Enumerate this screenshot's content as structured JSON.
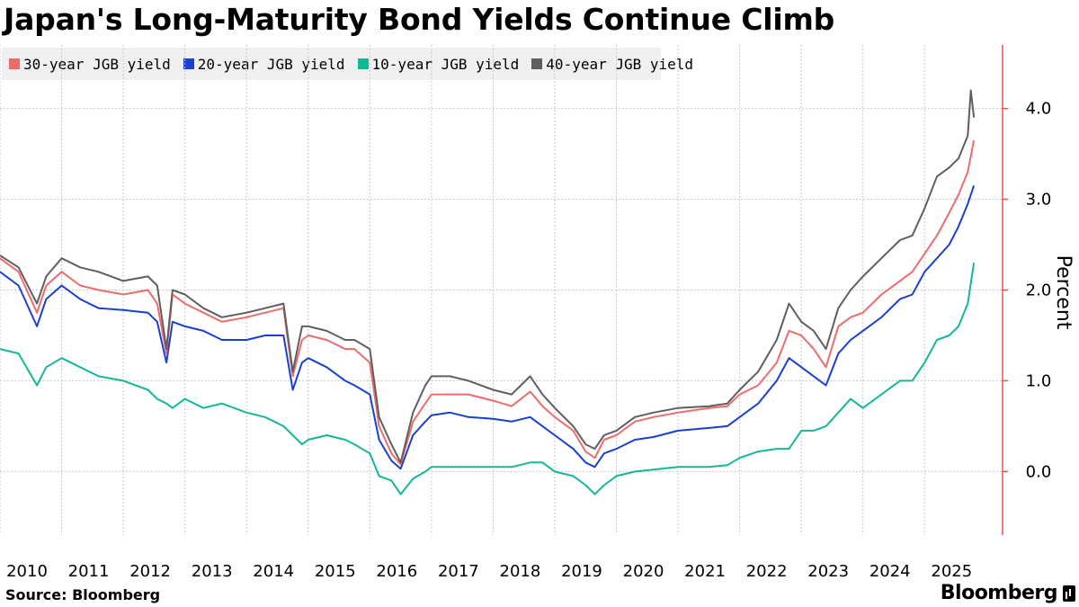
{
  "title": "Japan's Long-Maturity Bond Yields Continue Climb",
  "source": "Source: Bloomberg",
  "brand": "Bloomberg",
  "chart_data": {
    "type": "line",
    "title": "Japan's Long-Maturity Bond Yields Continue Climb",
    "xlabel": "",
    "ylabel": "Percent",
    "xlim": [
      2010,
      2025.9
    ],
    "ylim": [
      -0.7,
      4.7
    ],
    "y_ticks": [
      0.0,
      1.0,
      2.0,
      3.0,
      4.0
    ],
    "y_tick_labels": [
      "0.0",
      "1.0",
      "2.0",
      "3.0",
      "4.0"
    ],
    "x_ticks": [
      2010,
      2011,
      2012,
      2013,
      2014,
      2015,
      2016,
      2017,
      2018,
      2019,
      2020,
      2021,
      2022,
      2023,
      2024,
      2025
    ],
    "x_tick_labels": [
      "2010",
      "2011",
      "2012",
      "2013",
      "2014",
      "2015",
      "2016",
      "2017",
      "2018",
      "2019",
      "2020",
      "2021",
      "2022",
      "2023",
      "2024",
      "2025"
    ],
    "grid": true,
    "axis_color": "#e8504d",
    "legend_position": "top-left",
    "series": [
      {
        "name": "30-year JGB yield",
        "color": "#f06b6b",
        "points": [
          [
            2010.0,
            2.35
          ],
          [
            2010.3,
            2.2
          ],
          [
            2010.6,
            1.75
          ],
          [
            2010.75,
            2.05
          ],
          [
            2011.0,
            2.2
          ],
          [
            2011.3,
            2.05
          ],
          [
            2011.6,
            2.0
          ],
          [
            2012.0,
            1.95
          ],
          [
            2012.4,
            2.0
          ],
          [
            2012.55,
            1.85
          ],
          [
            2012.7,
            1.3
          ],
          [
            2012.8,
            1.95
          ],
          [
            2013.0,
            1.85
          ],
          [
            2013.3,
            1.75
          ],
          [
            2013.6,
            1.65
          ],
          [
            2014.0,
            1.7
          ],
          [
            2014.3,
            1.75
          ],
          [
            2014.6,
            1.8
          ],
          [
            2014.75,
            1.05
          ],
          [
            2014.9,
            1.45
          ],
          [
            2015.0,
            1.5
          ],
          [
            2015.3,
            1.45
          ],
          [
            2015.6,
            1.35
          ],
          [
            2015.75,
            1.35
          ],
          [
            2016.0,
            1.2
          ],
          [
            2016.15,
            0.5
          ],
          [
            2016.35,
            0.2
          ],
          [
            2016.5,
            0.08
          ],
          [
            2016.7,
            0.55
          ],
          [
            2016.9,
            0.75
          ],
          [
            2017.0,
            0.85
          ],
          [
            2017.3,
            0.85
          ],
          [
            2017.6,
            0.85
          ],
          [
            2018.0,
            0.78
          ],
          [
            2018.3,
            0.72
          ],
          [
            2018.6,
            0.88
          ],
          [
            2018.8,
            0.72
          ],
          [
            2019.0,
            0.6
          ],
          [
            2019.3,
            0.45
          ],
          [
            2019.5,
            0.22
          ],
          [
            2019.65,
            0.15
          ],
          [
            2019.8,
            0.35
          ],
          [
            2020.0,
            0.4
          ],
          [
            2020.3,
            0.55
          ],
          [
            2020.6,
            0.6
          ],
          [
            2021.0,
            0.65
          ],
          [
            2021.5,
            0.7
          ],
          [
            2021.8,
            0.72
          ],
          [
            2022.0,
            0.85
          ],
          [
            2022.3,
            0.95
          ],
          [
            2022.6,
            1.2
          ],
          [
            2022.8,
            1.55
          ],
          [
            2023.0,
            1.5
          ],
          [
            2023.2,
            1.35
          ],
          [
            2023.4,
            1.15
          ],
          [
            2023.6,
            1.6
          ],
          [
            2023.8,
            1.7
          ],
          [
            2024.0,
            1.75
          ],
          [
            2024.3,
            1.95
          ],
          [
            2024.6,
            2.1
          ],
          [
            2024.8,
            2.2
          ],
          [
            2025.0,
            2.4
          ],
          [
            2025.2,
            2.6
          ],
          [
            2025.4,
            2.85
          ],
          [
            2025.55,
            3.05
          ],
          [
            2025.7,
            3.3
          ],
          [
            2025.8,
            3.65
          ]
        ]
      },
      {
        "name": "20-year JGB yield",
        "color": "#1a3fd1",
        "points": [
          [
            2010.0,
            2.2
          ],
          [
            2010.3,
            2.05
          ],
          [
            2010.6,
            1.6
          ],
          [
            2010.75,
            1.9
          ],
          [
            2011.0,
            2.05
          ],
          [
            2011.3,
            1.9
          ],
          [
            2011.6,
            1.8
          ],
          [
            2012.0,
            1.78
          ],
          [
            2012.4,
            1.75
          ],
          [
            2012.55,
            1.65
          ],
          [
            2012.7,
            1.2
          ],
          [
            2012.8,
            1.65
          ],
          [
            2013.0,
            1.6
          ],
          [
            2013.3,
            1.55
          ],
          [
            2013.6,
            1.45
          ],
          [
            2014.0,
            1.45
          ],
          [
            2014.3,
            1.5
          ],
          [
            2014.6,
            1.5
          ],
          [
            2014.75,
            0.9
          ],
          [
            2014.9,
            1.2
          ],
          [
            2015.0,
            1.25
          ],
          [
            2015.3,
            1.15
          ],
          [
            2015.6,
            1.0
          ],
          [
            2015.75,
            0.95
          ],
          [
            2016.0,
            0.85
          ],
          [
            2016.15,
            0.35
          ],
          [
            2016.35,
            0.12
          ],
          [
            2016.5,
            0.03
          ],
          [
            2016.7,
            0.4
          ],
          [
            2016.9,
            0.55
          ],
          [
            2017.0,
            0.62
          ],
          [
            2017.3,
            0.65
          ],
          [
            2017.6,
            0.6
          ],
          [
            2018.0,
            0.58
          ],
          [
            2018.3,
            0.55
          ],
          [
            2018.6,
            0.6
          ],
          [
            2018.8,
            0.5
          ],
          [
            2019.0,
            0.4
          ],
          [
            2019.3,
            0.25
          ],
          [
            2019.5,
            0.1
          ],
          [
            2019.65,
            0.05
          ],
          [
            2019.8,
            0.2
          ],
          [
            2020.0,
            0.25
          ],
          [
            2020.3,
            0.35
          ],
          [
            2020.6,
            0.38
          ],
          [
            2021.0,
            0.45
          ],
          [
            2021.5,
            0.48
          ],
          [
            2021.8,
            0.5
          ],
          [
            2022.0,
            0.6
          ],
          [
            2022.3,
            0.75
          ],
          [
            2022.6,
            1.0
          ],
          [
            2022.8,
            1.25
          ],
          [
            2023.0,
            1.15
          ],
          [
            2023.2,
            1.05
          ],
          [
            2023.4,
            0.95
          ],
          [
            2023.6,
            1.3
          ],
          [
            2023.8,
            1.45
          ],
          [
            2024.0,
            1.55
          ],
          [
            2024.3,
            1.7
          ],
          [
            2024.6,
            1.9
          ],
          [
            2024.8,
            1.95
          ],
          [
            2025.0,
            2.2
          ],
          [
            2025.2,
            2.35
          ],
          [
            2025.4,
            2.5
          ],
          [
            2025.55,
            2.7
          ],
          [
            2025.7,
            2.95
          ],
          [
            2025.8,
            3.15
          ]
        ]
      },
      {
        "name": "10-year JGB yield",
        "color": "#14b896",
        "points": [
          [
            2010.0,
            1.35
          ],
          [
            2010.3,
            1.3
          ],
          [
            2010.6,
            0.95
          ],
          [
            2010.75,
            1.15
          ],
          [
            2011.0,
            1.25
          ],
          [
            2011.3,
            1.15
          ],
          [
            2011.6,
            1.05
          ],
          [
            2012.0,
            1.0
          ],
          [
            2012.4,
            0.9
          ],
          [
            2012.55,
            0.8
          ],
          [
            2012.7,
            0.75
          ],
          [
            2012.8,
            0.7
          ],
          [
            2013.0,
            0.8
          ],
          [
            2013.3,
            0.7
          ],
          [
            2013.6,
            0.75
          ],
          [
            2014.0,
            0.65
          ],
          [
            2014.3,
            0.6
          ],
          [
            2014.6,
            0.5
          ],
          [
            2014.75,
            0.4
          ],
          [
            2014.9,
            0.3
          ],
          [
            2015.0,
            0.35
          ],
          [
            2015.3,
            0.4
          ],
          [
            2015.6,
            0.35
          ],
          [
            2015.75,
            0.3
          ],
          [
            2016.0,
            0.2
          ],
          [
            2016.15,
            -0.05
          ],
          [
            2016.35,
            -0.1
          ],
          [
            2016.5,
            -0.25
          ],
          [
            2016.7,
            -0.08
          ],
          [
            2016.9,
            0.0
          ],
          [
            2017.0,
            0.05
          ],
          [
            2017.3,
            0.05
          ],
          [
            2017.6,
            0.05
          ],
          [
            2018.0,
            0.05
          ],
          [
            2018.3,
            0.05
          ],
          [
            2018.6,
            0.1
          ],
          [
            2018.8,
            0.1
          ],
          [
            2019.0,
            0.0
          ],
          [
            2019.3,
            -0.05
          ],
          [
            2019.5,
            -0.15
          ],
          [
            2019.65,
            -0.25
          ],
          [
            2019.8,
            -0.15
          ],
          [
            2020.0,
            -0.05
          ],
          [
            2020.3,
            0.0
          ],
          [
            2020.6,
            0.02
          ],
          [
            2021.0,
            0.05
          ],
          [
            2021.5,
            0.05
          ],
          [
            2021.8,
            0.07
          ],
          [
            2022.0,
            0.15
          ],
          [
            2022.3,
            0.22
          ],
          [
            2022.6,
            0.25
          ],
          [
            2022.8,
            0.25
          ],
          [
            2023.0,
            0.45
          ],
          [
            2023.2,
            0.45
          ],
          [
            2023.4,
            0.5
          ],
          [
            2023.6,
            0.65
          ],
          [
            2023.8,
            0.8
          ],
          [
            2024.0,
            0.7
          ],
          [
            2024.3,
            0.85
          ],
          [
            2024.6,
            1.0
          ],
          [
            2024.8,
            1.0
          ],
          [
            2025.0,
            1.2
          ],
          [
            2025.2,
            1.45
          ],
          [
            2025.4,
            1.5
          ],
          [
            2025.55,
            1.6
          ],
          [
            2025.7,
            1.85
          ],
          [
            2025.8,
            2.3
          ]
        ]
      },
      {
        "name": "40-year JGB yield",
        "color": "#5f5f5f",
        "points": [
          [
            2010.0,
            2.38
          ],
          [
            2010.3,
            2.25
          ],
          [
            2010.6,
            1.85
          ],
          [
            2010.75,
            2.15
          ],
          [
            2011.0,
            2.35
          ],
          [
            2011.3,
            2.25
          ],
          [
            2011.6,
            2.2
          ],
          [
            2012.0,
            2.1
          ],
          [
            2012.4,
            2.15
          ],
          [
            2012.55,
            2.05
          ],
          [
            2012.7,
            1.35
          ],
          [
            2012.8,
            2.0
          ],
          [
            2013.0,
            1.95
          ],
          [
            2013.3,
            1.8
          ],
          [
            2013.6,
            1.7
          ],
          [
            2014.0,
            1.75
          ],
          [
            2014.3,
            1.8
          ],
          [
            2014.6,
            1.85
          ],
          [
            2014.75,
            1.1
          ],
          [
            2014.9,
            1.6
          ],
          [
            2015.0,
            1.6
          ],
          [
            2015.3,
            1.55
          ],
          [
            2015.6,
            1.45
          ],
          [
            2015.75,
            1.45
          ],
          [
            2016.0,
            1.35
          ],
          [
            2016.15,
            0.6
          ],
          [
            2016.35,
            0.3
          ],
          [
            2016.5,
            0.1
          ],
          [
            2016.7,
            0.65
          ],
          [
            2016.9,
            0.95
          ],
          [
            2017.0,
            1.05
          ],
          [
            2017.3,
            1.05
          ],
          [
            2017.6,
            1.0
          ],
          [
            2018.0,
            0.9
          ],
          [
            2018.3,
            0.85
          ],
          [
            2018.6,
            1.05
          ],
          [
            2018.8,
            0.85
          ],
          [
            2019.0,
            0.7
          ],
          [
            2019.3,
            0.5
          ],
          [
            2019.5,
            0.3
          ],
          [
            2019.65,
            0.25
          ],
          [
            2019.8,
            0.4
          ],
          [
            2020.0,
            0.45
          ],
          [
            2020.3,
            0.6
          ],
          [
            2020.6,
            0.65
          ],
          [
            2021.0,
            0.7
          ],
          [
            2021.5,
            0.72
          ],
          [
            2021.8,
            0.75
          ],
          [
            2022.0,
            0.9
          ],
          [
            2022.3,
            1.1
          ],
          [
            2022.6,
            1.45
          ],
          [
            2022.8,
            1.85
          ],
          [
            2023.0,
            1.65
          ],
          [
            2023.2,
            1.55
          ],
          [
            2023.4,
            1.35
          ],
          [
            2023.6,
            1.8
          ],
          [
            2023.8,
            2.0
          ],
          [
            2024.0,
            2.15
          ],
          [
            2024.3,
            2.35
          ],
          [
            2024.6,
            2.55
          ],
          [
            2024.8,
            2.6
          ],
          [
            2025.0,
            2.9
          ],
          [
            2025.2,
            3.25
          ],
          [
            2025.4,
            3.35
          ],
          [
            2025.55,
            3.45
          ],
          [
            2025.7,
            3.7
          ],
          [
            2025.75,
            4.2
          ],
          [
            2025.8,
            3.9
          ]
        ]
      }
    ]
  }
}
